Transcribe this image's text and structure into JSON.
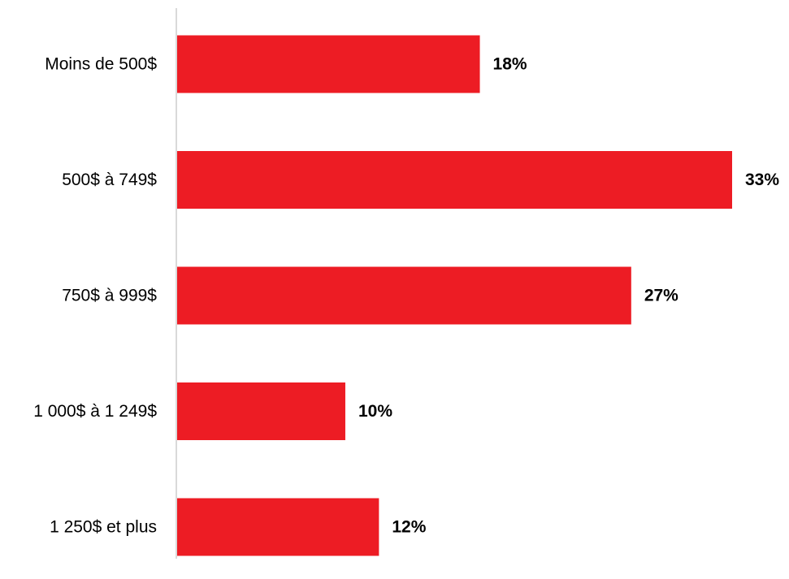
{
  "chart_data": {
    "type": "bar",
    "orientation": "horizontal",
    "categories": [
      "Moins de 500$",
      "500$ à 749$",
      "750$ à 999$",
      "1 000$ à 1 249$",
      "1 250$ et plus"
    ],
    "values": [
      18,
      33,
      27,
      10,
      12
    ],
    "value_labels": [
      "18%",
      "33%",
      "27%",
      "10%",
      "12%"
    ],
    "value_unit": "%",
    "xlim": [
      0,
      33
    ],
    "grid": false,
    "legend": "none",
    "colors": {
      "bar": "#ed1c24",
      "axis": "#d9d9d9",
      "text": "#000000"
    }
  }
}
